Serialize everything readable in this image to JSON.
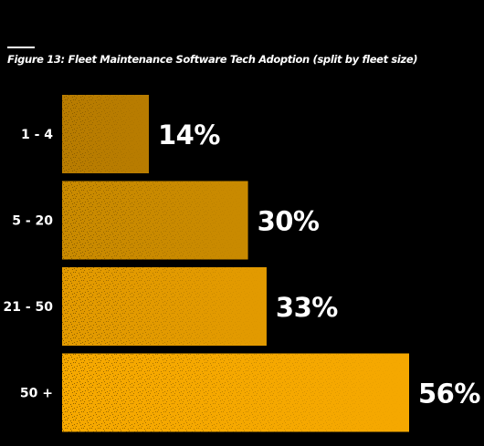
{
  "title": "Figure 13: Fleet Maintenance Software Tech Adoption (split by fleet size)",
  "chart_data": {
    "type": "bar",
    "orientation": "horizontal",
    "title": "Figure 13: Fleet Maintenance Software Tech Adoption (split by fleet size)",
    "categories": [
      "1 - 4",
      "5 - 20",
      "21 - 50",
      "50 +"
    ],
    "values": [
      14,
      30,
      33,
      56
    ],
    "value_labels": [
      "14%",
      "30%",
      "33%",
      "56%"
    ],
    "unit": "%",
    "xlabel": "",
    "ylabel": "",
    "xlim": [
      0,
      56
    ],
    "grid": false,
    "legend": "none",
    "colors": {
      "background": "#000000",
      "bar_fills": [
        "#b87c00",
        "#c98a00",
        "#e29a00",
        "#f5a800"
      ],
      "grain": "#7a5200",
      "text": "#ffffff"
    }
  }
}
